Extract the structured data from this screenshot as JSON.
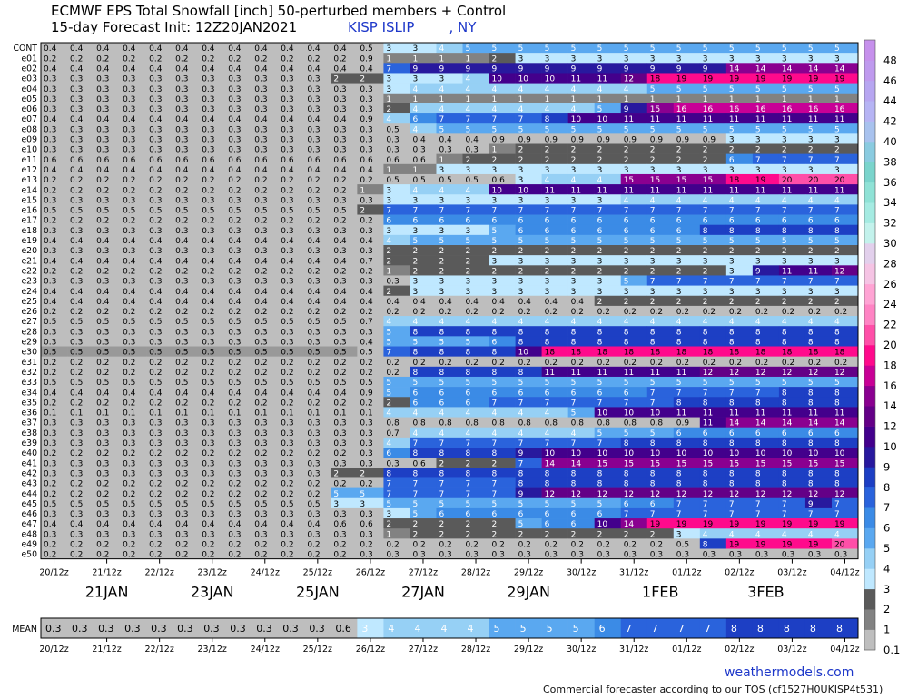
{
  "title": "ECMWF EPS Total Snowfall [inch]  50-perturbed members + Control",
  "subtitle": "15-day Forecast Init: 12Z20JAN2021",
  "location": "KISP ISLIP        , NY",
  "brand": "weathermodels.com",
  "tos_note": "Commercial forecaster according to our TOS (cf1527H0UKISP4t531)",
  "colors": {
    "grid_bg": "#c0c0c0",
    "dark_row": "#999999",
    "border": "#000000"
  },
  "chart_data": {
    "type": "heatmap",
    "unit": "inch",
    "time_ticks": [
      "20/12z",
      "21/12z",
      "22/12z",
      "23/12z",
      "24/12z",
      "25/12z",
      "26/12z",
      "27/12z",
      "28/12z",
      "29/12z",
      "30/12z",
      "31/12z",
      "01/12z",
      "02/12z",
      "03/12z",
      "04/12z"
    ],
    "date_labels": [
      {
        "label": "21JAN",
        "pos": 1
      },
      {
        "label": "23JAN",
        "pos": 3
      },
      {
        "label": "25JAN",
        "pos": 5
      },
      {
        "label": "27JAN",
        "pos": 7
      },
      {
        "label": "29JAN",
        "pos": 9
      },
      {
        "label": "1FEB",
        "pos": 11.5
      },
      {
        "label": "3FEB",
        "pos": 13.5
      }
    ],
    "columns_per_day": 2,
    "members": [
      {
        "name": "CONT",
        "start": 0.4,
        "breaks": [
          [
            12,
            0.5
          ],
          [
            13,
            3
          ],
          [
            15,
            4
          ],
          [
            16,
            5
          ]
        ]
      },
      {
        "name": "e01",
        "start": 0.2,
        "breaks": [
          [
            12,
            0.9
          ],
          [
            13,
            1
          ],
          [
            17,
            2
          ],
          [
            18,
            3
          ],
          [
            31,
            3
          ]
        ]
      },
      {
        "name": "e02",
        "start": 0.4,
        "breaks": [
          [
            12,
            0.4
          ],
          [
            13,
            7
          ],
          [
            14,
            9
          ],
          [
            26,
            14
          ],
          [
            30,
            14
          ]
        ]
      },
      {
        "name": "e03",
        "start": 0.3,
        "breaks": [
          [
            11,
            2
          ],
          [
            13,
            3
          ],
          [
            16,
            4
          ],
          [
            17,
            10
          ],
          [
            20,
            11
          ],
          [
            22,
            12
          ],
          [
            23,
            18
          ],
          [
            24,
            19
          ]
        ]
      },
      {
        "name": "e04",
        "start": 0.3,
        "breaks": [
          [
            13,
            3
          ],
          [
            14,
            4
          ],
          [
            18,
            4
          ],
          [
            23,
            5
          ]
        ]
      },
      {
        "name": "e05",
        "start": 0.3,
        "breaks": [
          [
            13,
            1
          ],
          [
            31,
            2
          ]
        ]
      },
      {
        "name": "e06",
        "start": 0.3,
        "breaks": [
          [
            13,
            2
          ],
          [
            14,
            4
          ],
          [
            21,
            5
          ],
          [
            22,
            9
          ],
          [
            23,
            15
          ],
          [
            24,
            16
          ]
        ]
      },
      {
        "name": "e07",
        "start": 0.4,
        "breaks": [
          [
            12,
            0.9
          ],
          [
            13,
            4
          ],
          [
            14,
            6
          ],
          [
            15,
            7
          ],
          [
            19,
            8
          ],
          [
            20,
            10
          ],
          [
            22,
            11
          ]
        ]
      },
      {
        "name": "e08",
        "start": 0.3,
        "breaks": [
          [
            13,
            0.5
          ],
          [
            14,
            4
          ],
          [
            15,
            5
          ]
        ]
      },
      {
        "name": "e09",
        "start": 0.3,
        "breaks": [
          [
            14,
            0.4
          ],
          [
            17,
            0.9
          ],
          [
            26,
            3
          ],
          [
            31,
            4
          ]
        ]
      },
      {
        "name": "e10",
        "start": 0.3,
        "breaks": [
          [
            16,
            0.3
          ],
          [
            17,
            1
          ],
          [
            18,
            2
          ]
        ]
      },
      {
        "name": "e11",
        "start": 0.6,
        "breaks": [
          [
            15,
            1
          ],
          [
            16,
            2
          ],
          [
            26,
            6
          ],
          [
            27,
            7
          ]
        ]
      },
      {
        "name": "e12",
        "start": 0.4,
        "breaks": [
          [
            13,
            1
          ],
          [
            15,
            3
          ]
        ]
      },
      {
        "name": "e13",
        "start": 0.2,
        "breaks": [
          [
            13,
            0.5
          ],
          [
            17,
            0.6
          ],
          [
            18,
            3
          ],
          [
            19,
            4
          ],
          [
            22,
            15
          ],
          [
            26,
            18
          ],
          [
            27,
            19
          ],
          [
            28,
            20
          ]
        ]
      },
      {
        "name": "e14",
        "start": 0.2,
        "breaks": [
          [
            12,
            1
          ],
          [
            13,
            3
          ],
          [
            14,
            4
          ],
          [
            17,
            10
          ],
          [
            18,
            10
          ],
          [
            19,
            11
          ]
        ]
      },
      {
        "name": "e15",
        "start": 0.3,
        "breaks": [
          [
            12,
            0.3
          ],
          [
            13,
            3
          ],
          [
            22,
            4
          ]
        ]
      },
      {
        "name": "e16",
        "start": 0.5,
        "breaks": [
          [
            12,
            2
          ],
          [
            13,
            7
          ]
        ]
      },
      {
        "name": "e17",
        "start": 0.2,
        "breaks": [
          [
            13,
            6
          ]
        ]
      },
      {
        "name": "e18",
        "start": 0.3,
        "breaks": [
          [
            13,
            3
          ],
          [
            17,
            5
          ],
          [
            18,
            6
          ],
          [
            25,
            8
          ]
        ]
      },
      {
        "name": "e19",
        "start": 0.4,
        "breaks": [
          [
            13,
            4
          ],
          [
            14,
            5
          ],
          [
            22,
            5
          ]
        ]
      },
      {
        "name": "e20",
        "start": 0.3,
        "breaks": [
          [
            13,
            2
          ]
        ]
      },
      {
        "name": "e21",
        "start": 0.4,
        "breaks": [
          [
            12,
            0.7
          ],
          [
            13,
            2
          ],
          [
            17,
            3
          ]
        ]
      },
      {
        "name": "e22",
        "start": 0.2,
        "breaks": [
          [
            13,
            1
          ],
          [
            14,
            2
          ],
          [
            21,
            2
          ],
          [
            26,
            3
          ],
          [
            27,
            9
          ],
          [
            28,
            11
          ],
          [
            30,
            12
          ]
        ]
      },
      {
        "name": "e23",
        "start": 0.3,
        "breaks": [
          [
            13,
            0.3
          ],
          [
            14,
            3
          ],
          [
            22,
            5
          ],
          [
            23,
            7
          ]
        ]
      },
      {
        "name": "e24",
        "start": 0.4,
        "breaks": [
          [
            13,
            2
          ],
          [
            14,
            3
          ]
        ]
      },
      {
        "name": "e25",
        "start": 0.4,
        "breaks": [
          [
            21,
            2
          ]
        ]
      },
      {
        "name": "e26",
        "start": 0.2,
        "breaks": [
          [
            32,
            0.4
          ]
        ]
      },
      {
        "name": "e27",
        "start": 0.5,
        "breaks": [
          [
            12,
            0.7
          ],
          [
            13,
            4
          ]
        ]
      },
      {
        "name": "e28",
        "start": 0.3,
        "breaks": [
          [
            13,
            5
          ],
          [
            14,
            8
          ]
        ]
      },
      {
        "name": "e29",
        "start": 0.3,
        "breaks": [
          [
            12,
            0.4
          ],
          [
            13,
            5
          ],
          [
            17,
            6
          ],
          [
            18,
            8
          ]
        ]
      },
      {
        "name": "e30",
        "start": 0.5,
        "breaks": [
          [
            13,
            7
          ],
          [
            14,
            8
          ],
          [
            18,
            10
          ],
          [
            19,
            18
          ]
        ]
      },
      {
        "name": "e31",
        "start": 0.2,
        "breaks": [
          [
            32,
            0.3
          ]
        ]
      },
      {
        "name": "e32",
        "start": 0.2,
        "breaks": [
          [
            13,
            0.2
          ],
          [
            14,
            8
          ],
          [
            19,
            11
          ],
          [
            25,
            12
          ],
          [
            31,
            13
          ]
        ]
      },
      {
        "name": "e33",
        "start": 0.5,
        "breaks": [
          [
            12,
            0.5
          ],
          [
            13,
            5
          ]
        ]
      },
      {
        "name": "e34",
        "start": 0.4,
        "breaks": [
          [
            12,
            0.9
          ],
          [
            13,
            5
          ],
          [
            14,
            6
          ],
          [
            23,
            7
          ],
          [
            28,
            8
          ]
        ]
      },
      {
        "name": "e35",
        "start": 0.2,
        "breaks": [
          [
            13,
            2
          ],
          [
            14,
            6
          ],
          [
            17,
            7
          ],
          [
            24,
            8
          ]
        ]
      },
      {
        "name": "e36",
        "start": 0.1,
        "breaks": [
          [
            12,
            0.1
          ],
          [
            13,
            4
          ],
          [
            20,
            5
          ],
          [
            21,
            10
          ],
          [
            24,
            11
          ],
          [
            31,
            18
          ]
        ]
      },
      {
        "name": "e37",
        "start": 0.3,
        "breaks": [
          [
            13,
            0.8
          ],
          [
            24,
            0.9
          ],
          [
            25,
            11
          ],
          [
            26,
            14
          ]
        ]
      },
      {
        "name": "e38",
        "start": 0.3,
        "breaks": [
          [
            13,
            0.7
          ],
          [
            14,
            4
          ],
          [
            21,
            5
          ],
          [
            24,
            6
          ]
        ]
      },
      {
        "name": "e39",
        "start": 0.3,
        "breaks": [
          [
            13,
            4
          ],
          [
            14,
            7
          ],
          [
            22,
            8
          ]
        ]
      },
      {
        "name": "e40",
        "start": 0.2,
        "breaks": [
          [
            12,
            0.3
          ],
          [
            13,
            6
          ],
          [
            14,
            8
          ],
          [
            18,
            9
          ],
          [
            19,
            10
          ]
        ]
      },
      {
        "name": "e41",
        "start": 0.3,
        "breaks": [
          [
            12,
            0.3
          ],
          [
            14,
            0.6
          ],
          [
            15,
            2
          ],
          [
            18,
            7
          ],
          [
            19,
            14
          ],
          [
            21,
            15
          ]
        ]
      },
      {
        "name": "e42",
        "start": 0.3,
        "breaks": [
          [
            11,
            2
          ],
          [
            13,
            8
          ]
        ]
      },
      {
        "name": "e43",
        "start": 0.2,
        "breaks": [
          [
            12,
            0.2
          ],
          [
            13,
            7
          ],
          [
            18,
            8
          ]
        ]
      },
      {
        "name": "e44",
        "start": 0.2,
        "breaks": [
          [
            11,
            5
          ],
          [
            13,
            7
          ],
          [
            18,
            9
          ],
          [
            19,
            12
          ]
        ]
      },
      {
        "name": "e45",
        "start": 0.5,
        "breaks": [
          [
            11,
            3
          ],
          [
            13,
            5
          ],
          [
            22,
            6
          ],
          [
            24,
            7
          ],
          [
            29,
            9
          ],
          [
            30,
            7
          ]
        ]
      },
      {
        "name": "e46",
        "start": 0.3,
        "breaks": [
          [
            13,
            3
          ],
          [
            14,
            5
          ],
          [
            15,
            6
          ],
          [
            19,
            6
          ],
          [
            22,
            7
          ]
        ]
      },
      {
        "name": "e47",
        "start": 0.4,
        "breaks": [
          [
            11,
            0.6
          ],
          [
            13,
            2
          ],
          [
            18,
            5
          ],
          [
            19,
            6
          ],
          [
            21,
            10
          ],
          [
            22,
            14
          ],
          [
            23,
            19
          ]
        ]
      },
      {
        "name": "e48",
        "start": 0.3,
        "breaks": [
          [
            13,
            1
          ],
          [
            14,
            2
          ],
          [
            24,
            3
          ],
          [
            25,
            4
          ]
        ]
      },
      {
        "name": "e49",
        "start": 0.2,
        "breaks": [
          [
            23,
            0.2
          ],
          [
            24,
            0.5
          ],
          [
            25,
            8
          ],
          [
            26,
            19
          ],
          [
            30,
            20
          ]
        ]
      },
      {
        "name": "e50",
        "start": 0.2,
        "breaks": [
          [
            12,
            0.3
          ],
          [
            31,
            0.6
          ]
        ]
      }
    ],
    "mean": {
      "name": "MEAN",
      "values": [
        0.3,
        0.3,
        0.3,
        0.3,
        0.3,
        0.3,
        0.3,
        0.3,
        0.3,
        0.3,
        0.3,
        0.6,
        3,
        4,
        4,
        4,
        4,
        5,
        5,
        5,
        5,
        6,
        7,
        7,
        7,
        7,
        8,
        8,
        8,
        8,
        8
      ]
    },
    "colorbar": {
      "labels": [
        "0.1",
        "1",
        "2",
        "3",
        "4",
        "5",
        "6",
        "7",
        "8",
        "9",
        "10",
        "12",
        "14",
        "16",
        "18",
        "20",
        "22",
        "24",
        "26",
        "28",
        "30",
        "32",
        "34",
        "36",
        "38",
        "40",
        "42",
        "44",
        "46",
        "48"
      ],
      "colors": [
        "#bebebe",
        "#828282",
        "#5a5a5a",
        "#bfe8ff",
        "#96d0f5",
        "#5aa8f0",
        "#3b8be6",
        "#2a63dc",
        "#1d3fc4",
        "#28199e",
        "#43008c",
        "#640087",
        "#8a0090",
        "#c80096",
        "#ff0a8c",
        "#ff4fa8",
        "#ff84c4",
        "#ffa4d4",
        "#f5c4e4",
        "#e2d0ec",
        "#c3f2ec",
        "#a5ebe2",
        "#8fe2d6",
        "#7ad4cc",
        "#8acbe0",
        "#a8c2ee",
        "#b6b4f4",
        "#b7a6f1",
        "#bf9aee",
        "#c690ec"
      ]
    }
  }
}
